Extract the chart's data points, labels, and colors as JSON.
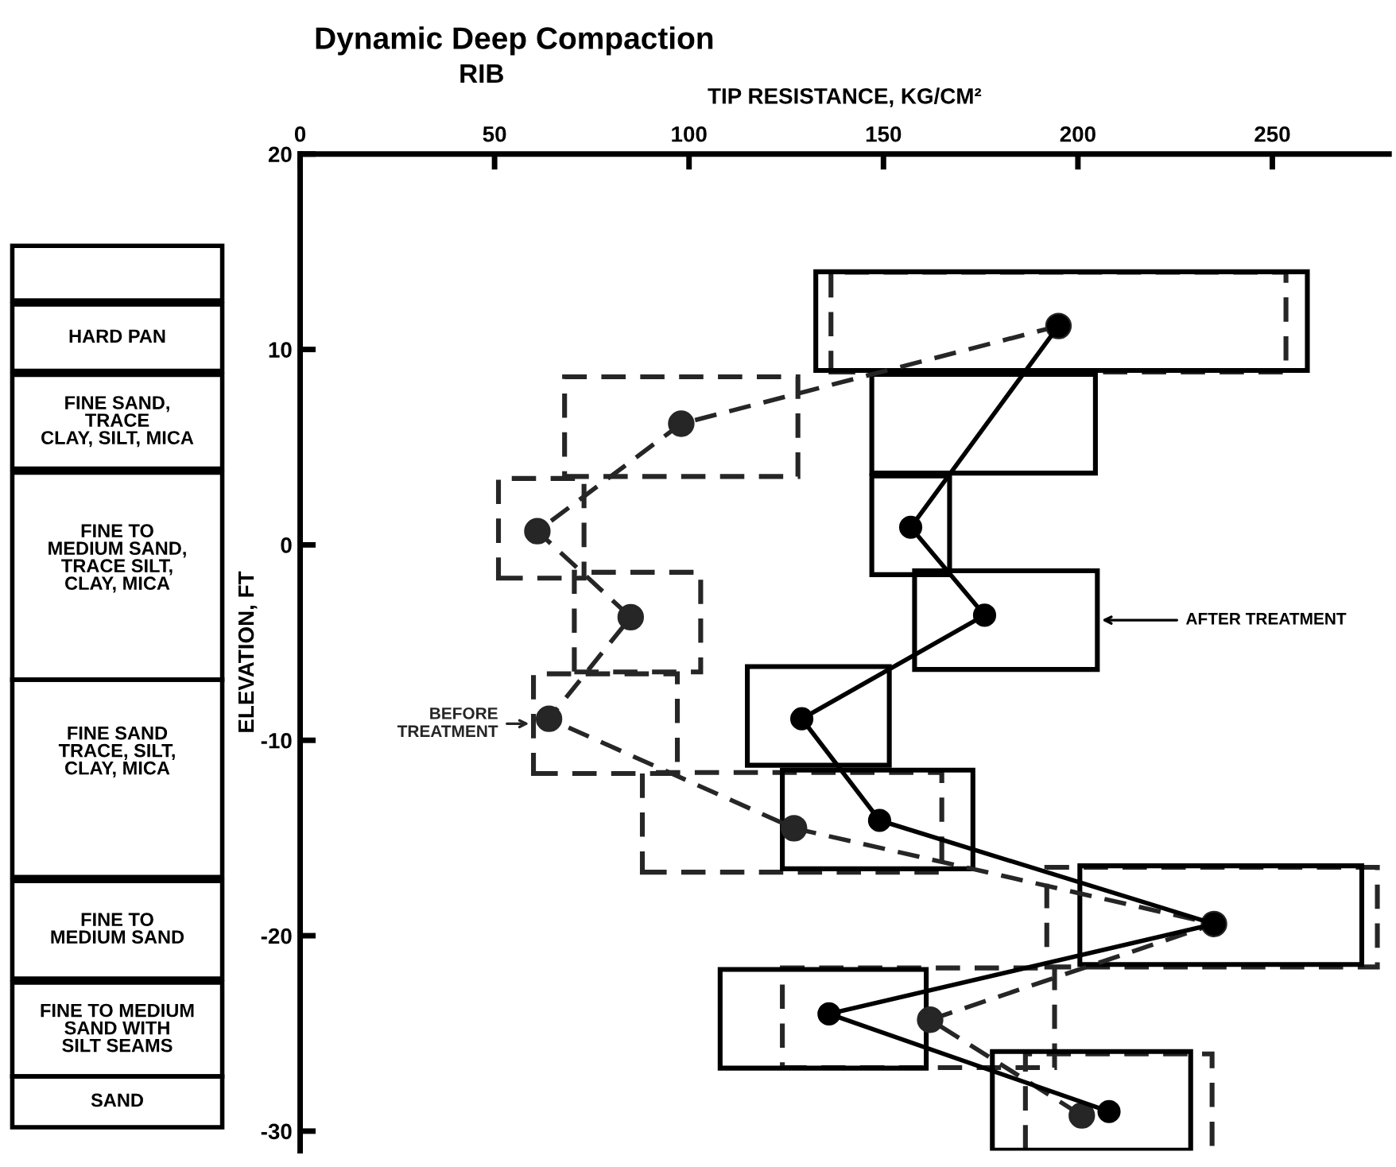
{
  "chart_data": {
    "type": "line",
    "orientation": "horizontal",
    "title": "Dynamic Deep Compaction",
    "subtitle": "RIB",
    "xlabel": "TIP RESISTANCE, KG/CM²",
    "ylabel": "ELEVATION, FT",
    "xlim": [
      0,
      280
    ],
    "xticks": [
      0,
      50,
      100,
      150,
      200,
      250
    ],
    "ylim": [
      -31,
      20
    ],
    "yticks": [
      20,
      10,
      0,
      -10,
      -20,
      -30
    ],
    "series": [
      {
        "type": "bar",
        "name": "BEFORE\nTREATMENT",
        "line_style": "dashed",
        "color": "#262626",
        "x": [
          11.4,
          6.05,
          0.85,
          -3.95,
          -9.15,
          -14.2,
          -19.05,
          -24.2,
          -28.6
        ],
        "base": [
          136.5,
          68,
          51,
          70.5,
          60,
          88,
          192,
          124,
          186.5
        ],
        "values": [
          117,
          60,
          22,
          32.5,
          37,
          77,
          85,
          70,
          48
        ]
      },
      {
        "type": "bar",
        "name": "AFTER TREATMENT",
        "line_style": "solid",
        "color": "#000000",
        "x": [
          11.45,
          6.2,
          1,
          -3.85,
          -8.75,
          -14.05,
          -18.95,
          -24.25,
          -28.45
        ],
        "base": [
          132.6,
          147,
          147,
          158,
          115,
          124,
          200.5,
          108,
          178
        ],
        "values": [
          126.4,
          57.5,
          20,
          47,
          36.5,
          49,
          72.5,
          53,
          51
        ]
      },
      {
        "marker": "circle",
        "line_style": "dashed",
        "color": "#262626",
        "x": [
          11.2,
          6.2,
          0.7,
          -3.7,
          -8.9,
          -14.5,
          -19.4,
          -24.3,
          -29.2
        ],
        "values": [
          195,
          98,
          61,
          85,
          64,
          127,
          235,
          162,
          201
        ]
      },
      {
        "marker": "circle",
        "line_style": "solid",
        "color": "#000000",
        "x": [
          11.2,
          0.9,
          -3.6,
          -8.9,
          -14.1,
          -19.4,
          -24,
          -29
        ],
        "values": [
          195,
          157,
          176,
          129,
          149,
          235,
          136,
          208
        ]
      }
    ],
    "annotations": [
      "HARD PAN",
      "FINE SAND,\nTRACE\nCLAY, SILT, MICA",
      "FINE TO\nMEDIUM SAND,\nTRACE SILT,\nCLAY, MICA\n\n",
      "FINE SAND\nTRACE, SILT,\nCLAY, MICA\n\n\n",
      "FINE TO\nMEDIUM SAND",
      "FINE TO MEDIUM\nSAND WITH\nSILT SEAMS",
      "SAND"
    ]
  }
}
